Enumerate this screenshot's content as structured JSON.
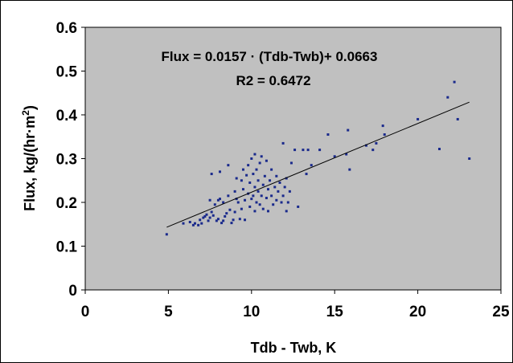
{
  "chart_data": {
    "type": "scatter",
    "title": "",
    "xlabel": "Tdb - Twb, K",
    "ylabel_main": "Flux, kg/(hr·m",
    "ylabel_sup": "2",
    "ylabel_tail": ")",
    "xlim": [
      0,
      25
    ],
    "ylim": [
      0,
      0.6
    ],
    "xticks": [
      "0",
      "5",
      "10",
      "15",
      "20",
      "25"
    ],
    "yticks": [
      "0",
      "0.1",
      "0.2",
      "0.3",
      "0.4",
      "0.5",
      "0.6"
    ],
    "grid": false,
    "plot_background": "#c0c0c0",
    "marker_color": "#1a2a8c",
    "trendline": {
      "slope": 0.0157,
      "intercept": 0.0663,
      "x_range": [
        4.9,
        23.1
      ],
      "color": "#000000"
    },
    "annotations": {
      "equation": "Flux = 0.0157 · (Tdb-Twb)+ 0.0663",
      "r2": "R2 = 0.6472"
    },
    "points": [
      [
        4.9,
        0.127
      ],
      [
        5.9,
        0.152
      ],
      [
        6.3,
        0.155
      ],
      [
        6.5,
        0.148
      ],
      [
        6.6,
        0.152
      ],
      [
        6.8,
        0.148
      ],
      [
        6.9,
        0.16
      ],
      [
        7.0,
        0.152
      ],
      [
        7.1,
        0.165
      ],
      [
        7.2,
        0.168
      ],
      [
        7.3,
        0.172
      ],
      [
        7.4,
        0.158
      ],
      [
        7.5,
        0.165
      ],
      [
        7.5,
        0.205
      ],
      [
        7.6,
        0.178
      ],
      [
        7.6,
        0.265
      ],
      [
        7.7,
        0.17
      ],
      [
        7.8,
        0.195
      ],
      [
        7.9,
        0.158
      ],
      [
        8.0,
        0.162
      ],
      [
        8.0,
        0.205
      ],
      [
        8.1,
        0.208
      ],
      [
        8.1,
        0.27
      ],
      [
        8.2,
        0.153
      ],
      [
        8.3,
        0.158
      ],
      [
        8.3,
        0.2
      ],
      [
        8.4,
        0.168
      ],
      [
        8.5,
        0.175
      ],
      [
        8.6,
        0.215
      ],
      [
        8.6,
        0.285
      ],
      [
        8.7,
        0.183
      ],
      [
        8.8,
        0.153
      ],
      [
        8.9,
        0.16
      ],
      [
        9.0,
        0.225
      ],
      [
        9.0,
        0.178
      ],
      [
        9.1,
        0.208
      ],
      [
        9.1,
        0.255
      ],
      [
        9.2,
        0.2
      ],
      [
        9.3,
        0.162
      ],
      [
        9.4,
        0.185
      ],
      [
        9.4,
        0.25
      ],
      [
        9.5,
        0.23
      ],
      [
        9.5,
        0.275
      ],
      [
        9.6,
        0.205
      ],
      [
        9.6,
        0.16
      ],
      [
        9.7,
        0.262
      ],
      [
        9.8,
        0.22
      ],
      [
        9.8,
        0.285
      ],
      [
        9.9,
        0.19
      ],
      [
        9.9,
        0.245
      ],
      [
        10.0,
        0.208
      ],
      [
        10.0,
        0.3
      ],
      [
        10.1,
        0.215
      ],
      [
        10.1,
        0.265
      ],
      [
        10.2,
        0.18
      ],
      [
        10.2,
        0.235
      ],
      [
        10.2,
        0.31
      ],
      [
        10.3,
        0.2
      ],
      [
        10.3,
        0.275
      ],
      [
        10.4,
        0.225
      ],
      [
        10.4,
        0.25
      ],
      [
        10.5,
        0.195
      ],
      [
        10.5,
        0.29
      ],
      [
        10.6,
        0.215
      ],
      [
        10.6,
        0.305
      ],
      [
        10.7,
        0.185
      ],
      [
        10.7,
        0.24
      ],
      [
        10.8,
        0.26
      ],
      [
        10.9,
        0.21
      ],
      [
        10.9,
        0.295
      ],
      [
        11.0,
        0.23
      ],
      [
        11.0,
        0.18
      ],
      [
        11.1,
        0.25
      ],
      [
        11.2,
        0.215
      ],
      [
        11.2,
        0.275
      ],
      [
        11.3,
        0.195
      ],
      [
        11.4,
        0.235
      ],
      [
        11.5,
        0.205
      ],
      [
        11.5,
        0.26
      ],
      [
        11.6,
        0.225
      ],
      [
        11.7,
        0.245
      ],
      [
        11.8,
        0.2
      ],
      [
        11.9,
        0.215
      ],
      [
        11.9,
        0.335
      ],
      [
        12.0,
        0.235
      ],
      [
        12.1,
        0.18
      ],
      [
        12.1,
        0.255
      ],
      [
        12.2,
        0.2
      ],
      [
        12.3,
        0.225
      ],
      [
        12.4,
        0.29
      ],
      [
        12.6,
        0.32
      ],
      [
        12.8,
        0.19
      ],
      [
        13.1,
        0.32
      ],
      [
        13.3,
        0.265
      ],
      [
        13.4,
        0.32
      ],
      [
        13.6,
        0.285
      ],
      [
        14.1,
        0.32
      ],
      [
        14.6,
        0.355
      ],
      [
        15.0,
        0.305
      ],
      [
        15.7,
        0.31
      ],
      [
        15.8,
        0.365
      ],
      [
        15.9,
        0.275
      ],
      [
        16.9,
        0.33
      ],
      [
        17.3,
        0.32
      ],
      [
        17.5,
        0.335
      ],
      [
        17.9,
        0.375
      ],
      [
        18.0,
        0.355
      ],
      [
        20.0,
        0.39
      ],
      [
        21.3,
        0.322
      ],
      [
        21.8,
        0.44
      ],
      [
        22.2,
        0.475
      ],
      [
        22.4,
        0.39
      ],
      [
        23.1,
        0.3
      ]
    ]
  }
}
